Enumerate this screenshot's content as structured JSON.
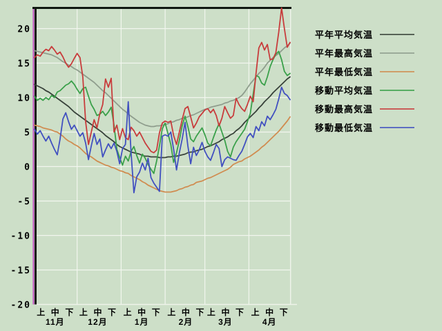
{
  "colors": {
    "background": "#cddfc8",
    "grid": "#f2f6ef",
    "axis": "#101810",
    "axis_accent": "#bf4fbf",
    "frame_light": "#eef3ea",
    "text": "#000000"
  },
  "legend": {
    "items": [
      {
        "label": "平年平均気温",
        "series": "heinen_avg"
      },
      {
        "label": "平年最高気温",
        "series": "heinen_max"
      },
      {
        "label": "平年最低気温",
        "series": "heinen_min"
      },
      {
        "label": "移動平均気温",
        "series": "ido_avg"
      },
      {
        "label": "移動最高気温",
        "series": "ido_max"
      },
      {
        "label": "移動最低気温",
        "series": "ido_min"
      }
    ]
  },
  "y_axis": {
    "ticks": [
      20,
      15,
      10,
      5,
      0,
      -5,
      -10,
      -15,
      -20
    ]
  },
  "x_axis": {
    "period_labels": [
      "上",
      "中",
      "下"
    ],
    "months": [
      {
        "label": "11月",
        "start_day": 0,
        "days": 30
      },
      {
        "label": "12月",
        "start_day": 30,
        "days": 31
      },
      {
        "label": "1月",
        "start_day": 61,
        "days": 31
      },
      {
        "label": "2月",
        "start_day": 92,
        "days": 28
      },
      {
        "label": "3月",
        "start_day": 120,
        "days": 31
      },
      {
        "label": "4月",
        "start_day": 151,
        "days": 30
      }
    ]
  },
  "chart_data": {
    "type": "line",
    "title": "",
    "x_unit": "days_from_nov_1",
    "total_days": 181,
    "day_step": 2,
    "ylim": [
      -20,
      23
    ],
    "grid": true,
    "legend_position": "right",
    "series": [
      {
        "key": "heinen_avg",
        "name": "平年平均気温",
        "color": "#38423a",
        "style": "smooth",
        "values": [
          11.9,
          11.7,
          11.5,
          11.3,
          11.0,
          10.8,
          10.5,
          10.2,
          9.9,
          9.6,
          9.3,
          9.0,
          8.7,
          8.3,
          7.9,
          7.6,
          7.3,
          7.0,
          6.7,
          6.4,
          6.1,
          5.8,
          5.5,
          5.2,
          4.9,
          4.5,
          4.2,
          3.9,
          3.6,
          3.2,
          2.9,
          2.7,
          2.5,
          2.3,
          2.1,
          2.0,
          1.9,
          1.8,
          1.6,
          1.5,
          1.5,
          1.4,
          1.4,
          1.4,
          1.3,
          1.3,
          1.3,
          1.4,
          1.4,
          1.5,
          1.5,
          1.6,
          1.7,
          1.8,
          2.0,
          2.1,
          2.1,
          2.3,
          2.4,
          2.5,
          2.7,
          2.9,
          3.0,
          3.2,
          3.4,
          3.6,
          3.9,
          4.1,
          4.3,
          4.6,
          4.8,
          5.2,
          5.5,
          5.9,
          6.4,
          6.8,
          7.2,
          7.6,
          8.0,
          8.5,
          8.9,
          9.4,
          9.8,
          10.2,
          10.7,
          11.1,
          11.5,
          11.9,
          12.3,
          12.7,
          13.0
        ]
      },
      {
        "key": "heinen_max",
        "name": "平年最高気温",
        "color": "#8f9d8d",
        "style": "smooth",
        "values": [
          16.8,
          16.7,
          16.6,
          16.5,
          16.4,
          16.3,
          16.2,
          16.0,
          15.8,
          15.5,
          15.2,
          15.0,
          14.7,
          14.5,
          14.2,
          14.0,
          13.7,
          13.4,
          13.1,
          12.8,
          12.5,
          12.2,
          11.8,
          11.4,
          11.0,
          10.7,
          10.3,
          9.9,
          9.5,
          9.1,
          8.7,
          8.3,
          8.0,
          7.6,
          7.3,
          7.0,
          6.7,
          6.4,
          6.2,
          6.0,
          5.9,
          5.8,
          5.8,
          5.9,
          5.9,
          6.0,
          6.1,
          6.2,
          6.4,
          6.5,
          6.7,
          6.8,
          7.0,
          7.1,
          7.2,
          7.4,
          7.5,
          7.7,
          7.9,
          8.1,
          8.3,
          8.4,
          8.6,
          8.7,
          8.8,
          8.9,
          9.0,
          9.2,
          9.3,
          9.5,
          9.6,
          9.8,
          10.0,
          10.3,
          10.8,
          11.4,
          12.0,
          12.5,
          13.0,
          13.5,
          13.9,
          14.4,
          15.0,
          15.4,
          15.8,
          16.1,
          16.4,
          16.8,
          17.2,
          17.5,
          17.9
        ]
      },
      {
        "key": "heinen_min",
        "name": "平年最低気温",
        "color": "#d08c50",
        "style": "smooth",
        "values": [
          6.0,
          5.9,
          5.8,
          5.6,
          5.5,
          5.4,
          5.3,
          5.1,
          5.0,
          4.7,
          4.4,
          4.0,
          3.7,
          3.5,
          3.2,
          3.0,
          2.7,
          2.3,
          1.9,
          1.6,
          1.4,
          1.1,
          0.8,
          0.6,
          0.4,
          0.2,
          0.1,
          -0.1,
          -0.2,
          -0.4,
          -0.6,
          -0.7,
          -0.9,
          -1.0,
          -1.3,
          -1.5,
          -1.7,
          -1.9,
          -2.2,
          -2.4,
          -2.7,
          -2.9,
          -3.1,
          -3.3,
          -3.5,
          -3.6,
          -3.7,
          -3.7,
          -3.7,
          -3.6,
          -3.5,
          -3.3,
          -3.2,
          -3.0,
          -2.9,
          -2.7,
          -2.6,
          -2.3,
          -2.2,
          -2.1,
          -1.9,
          -1.7,
          -1.6,
          -1.4,
          -1.2,
          -1.0,
          -0.8,
          -0.6,
          -0.4,
          -0.1,
          0.3,
          0.5,
          0.7,
          0.8,
          1.1,
          1.3,
          1.5,
          1.8,
          2.1,
          2.4,
          2.8,
          3.1,
          3.5,
          3.9,
          4.3,
          4.7,
          5.1,
          5.6,
          6.1,
          6.6,
          7.2
        ]
      },
      {
        "key": "ido_avg",
        "name": "移動平均気温",
        "color": "#3aa04a",
        "style": "jagged",
        "values": [
          10.2,
          9.6,
          9.9,
          9.6,
          10.0,
          9.7,
          10.3,
          10.0,
          10.8,
          11.0,
          11.4,
          11.8,
          12.0,
          12.4,
          11.9,
          11.2,
          10.6,
          11.3,
          11.5,
          10.2,
          9.0,
          8.3,
          7.4,
          7.6,
          8.0,
          7.4,
          7.9,
          8.6,
          6.0,
          2.5,
          1.3,
          0.2,
          1.5,
          0.8,
          2.2,
          2.9,
          1.6,
          0.5,
          1.8,
          1.2,
          0.3,
          -0.4,
          -1.0,
          0.8,
          3.0,
          5.5,
          6.3,
          4.8,
          3.2,
          0.6,
          2.0,
          3.8,
          5.9,
          7.3,
          5.8,
          4.0,
          3.6,
          4.4,
          5.0,
          5.6,
          4.6,
          3.4,
          3.0,
          4.2,
          5.3,
          6.2,
          5.0,
          3.8,
          2.2,
          1.4,
          2.8,
          3.6,
          4.2,
          4.8,
          5.4,
          6.5,
          7.7,
          10.5,
          13.2,
          13.0,
          12.1,
          11.8,
          13.0,
          14.5,
          15.5,
          16.3,
          16.7,
          15.5,
          13.8,
          13.2,
          13.5
        ]
      },
      {
        "key": "ido_max",
        "name": "移動最高気温",
        "color": "#c83c3c",
        "style": "jagged",
        "values": [
          15.8,
          16.2,
          16.0,
          16.6,
          17.0,
          16.8,
          17.4,
          16.9,
          16.3,
          16.6,
          15.9,
          15.0,
          14.4,
          14.9,
          15.7,
          16.4,
          15.8,
          13.0,
          6.5,
          3.2,
          5.0,
          6.8,
          5.6,
          7.7,
          9.0,
          12.7,
          11.5,
          12.8,
          5.0,
          6.0,
          3.9,
          5.5,
          4.2,
          3.9,
          5.7,
          5.2,
          4.4,
          5.0,
          4.2,
          3.4,
          2.8,
          2.2,
          2.0,
          2.4,
          4.9,
          6.3,
          6.6,
          6.4,
          6.6,
          4.5,
          3.2,
          5.0,
          6.8,
          8.4,
          8.7,
          7.2,
          5.6,
          6.3,
          7.2,
          7.7,
          8.2,
          8.4,
          7.8,
          8.3,
          7.4,
          5.9,
          7.0,
          8.7,
          7.8,
          7.0,
          7.4,
          9.9,
          9.0,
          8.4,
          8.0,
          9.0,
          10.2,
          9.4,
          13.5,
          17.2,
          18.0,
          16.9,
          17.7,
          15.5,
          15.6,
          16.5,
          19.5,
          23.0,
          20.0,
          17.3,
          18.0
        ]
      },
      {
        "key": "ido_min",
        "name": "移動最低気温",
        "color": "#4150c0",
        "style": "jagged",
        "values": [
          5.4,
          4.7,
          5.2,
          4.4,
          3.7,
          4.4,
          3.4,
          2.5,
          1.7,
          4.0,
          6.9,
          7.8,
          6.5,
          5.4,
          6.0,
          5.2,
          4.4,
          4.9,
          3.4,
          1.0,
          3.0,
          4.8,
          3.2,
          4.0,
          1.4,
          2.4,
          3.3,
          2.6,
          3.4,
          2.2,
          0.4,
          2.6,
          3.2,
          9.4,
          2.0,
          -3.8,
          -1.5,
          -0.8,
          0.5,
          -0.5,
          1.2,
          -1.6,
          -2.4,
          -3.0,
          -3.6,
          4.4,
          4.6,
          4.4,
          5.0,
          2.5,
          -0.5,
          2.0,
          4.0,
          6.4,
          3.0,
          0.4,
          2.8,
          1.6,
          2.4,
          3.5,
          2.2,
          1.4,
          0.9,
          2.0,
          3.2,
          2.6,
          0.0,
          1.0,
          1.4,
          1.2,
          1.0,
          0.9,
          1.6,
          2.2,
          3.2,
          4.3,
          4.8,
          4.2,
          5.8,
          5.2,
          6.5,
          5.9,
          7.3,
          6.8,
          7.5,
          8.3,
          9.8,
          11.5,
          10.6,
          10.3,
          9.7
        ]
      }
    ]
  }
}
